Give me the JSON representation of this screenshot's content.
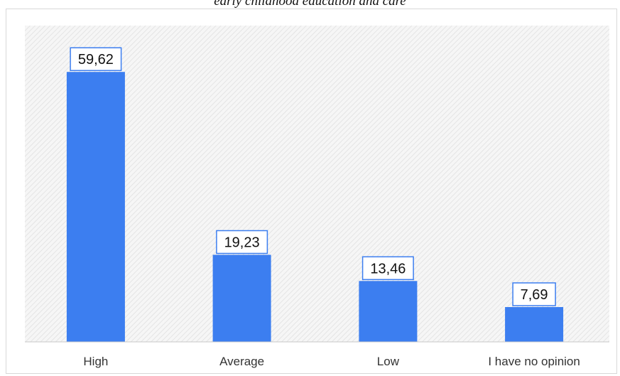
{
  "caption": "early childhood education and care",
  "chart_data": {
    "type": "bar",
    "categories": [
      "High",
      "Average",
      "Low",
      "I have no opinion"
    ],
    "values": [
      59.62,
      19.23,
      13.46,
      7.69
    ],
    "data_labels": [
      "59,62",
      "19,23",
      "13,46",
      "7,69"
    ],
    "title": "",
    "xlabel": "",
    "ylabel": "",
    "ylim": [
      0,
      70
    ],
    "grid": false,
    "legend": "none",
    "colors": {
      "bar": "#3c7ef0",
      "label_border": "#3c7ef0",
      "plot_background_stripe": "#e9e9e9",
      "axis_line": "#c8c8c8"
    }
  }
}
